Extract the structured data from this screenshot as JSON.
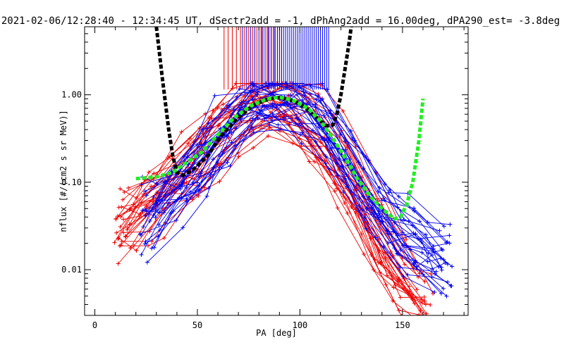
{
  "chart_data": {
    "type": "scatter",
    "title": "2021-02-06/12:28:40 - 12:34:45 UT, dSectr2add = -1, dPhAng2add = 16.00deg, dPA290_est=  -3.8deg",
    "xlabel": "PA [deg]",
    "ylabel": "nflux [#/(cm2 s sr MeV)]",
    "xlim": [
      -5,
      182
    ],
    "ylim": [
      0.003,
      6
    ],
    "y_scale": "log",
    "x_ticks": [
      0,
      50,
      100,
      150
    ],
    "x_tick_labels": [
      "0",
      "50",
      "100",
      "150"
    ],
    "y_ticks": [
      0.01,
      0.1,
      1.0
    ],
    "y_tick_labels": [
      "0.01",
      "0.10",
      "1.00"
    ],
    "grid": false,
    "colors": {
      "red_series": "#ee0000",
      "blue_series": "#0000ee",
      "black_fit": "#000000",
      "green_fit": "#22ee22"
    },
    "series": [
      {
        "color": "red",
        "style": "lines+plus-markers",
        "peak_pa": 86,
        "profile": [
          [
            8,
            0.03
          ],
          [
            15,
            0.038
          ],
          [
            20,
            0.045
          ],
          [
            30,
            0.07
          ],
          [
            40,
            0.12
          ],
          [
            50,
            0.2
          ],
          [
            60,
            0.38
          ],
          [
            70,
            0.62
          ],
          [
            80,
            0.86
          ],
          [
            87,
            0.95
          ],
          [
            95,
            0.82
          ],
          [
            105,
            0.5
          ],
          [
            115,
            0.25
          ],
          [
            125,
            0.1
          ],
          [
            135,
            0.035
          ],
          [
            145,
            0.012
          ],
          [
            155,
            0.006
          ],
          [
            165,
            0.004
          ]
        ]
      },
      {
        "color": "blue",
        "style": "lines+plus-markers",
        "peak_pa": 92,
        "profile": [
          [
            22,
            0.035
          ],
          [
            30,
            0.05
          ],
          [
            40,
            0.09
          ],
          [
            50,
            0.16
          ],
          [
            60,
            0.32
          ],
          [
            70,
            0.58
          ],
          [
            80,
            0.82
          ],
          [
            90,
            0.97
          ],
          [
            100,
            0.84
          ],
          [
            110,
            0.55
          ],
          [
            120,
            0.25
          ],
          [
            130,
            0.09
          ],
          [
            140,
            0.04
          ],
          [
            150,
            0.025
          ],
          [
            160,
            0.018
          ],
          [
            170,
            0.012
          ],
          [
            175,
            0.01
          ]
        ]
      },
      {
        "color": "black",
        "style": "thick dashed fit",
        "points": [
          [
            30,
            6.0
          ],
          [
            33,
            1.5
          ],
          [
            36,
            0.4
          ],
          [
            38,
            0.2
          ],
          [
            40,
            0.13
          ],
          [
            43,
            0.12
          ],
          [
            48,
            0.14
          ],
          [
            55,
            0.2
          ],
          [
            62,
            0.35
          ],
          [
            70,
            0.55
          ],
          [
            78,
            0.78
          ],
          [
            85,
            0.9
          ],
          [
            90,
            0.93
          ],
          [
            97,
            0.85
          ],
          [
            103,
            0.7
          ],
          [
            108,
            0.55
          ],
          [
            113,
            0.44
          ],
          [
            116,
            0.45
          ],
          [
            118,
            0.6
          ],
          [
            120,
            1.0
          ],
          [
            122,
            2.0
          ],
          [
            124,
            4.0
          ],
          [
            125,
            6.0
          ]
        ]
      },
      {
        "color": "green",
        "style": "thick dashed fit",
        "points": [
          [
            20,
            0.11
          ],
          [
            30,
            0.115
          ],
          [
            38,
            0.13
          ],
          [
            45,
            0.17
          ],
          [
            52,
            0.22
          ],
          [
            60,
            0.35
          ],
          [
            68,
            0.55
          ],
          [
            76,
            0.75
          ],
          [
            84,
            0.9
          ],
          [
            90,
            0.94
          ],
          [
            97,
            0.86
          ],
          [
            104,
            0.7
          ],
          [
            110,
            0.5
          ],
          [
            116,
            0.32
          ],
          [
            122,
            0.19
          ],
          [
            128,
            0.11
          ],
          [
            134,
            0.07
          ],
          [
            140,
            0.05
          ],
          [
            146,
            0.038
          ],
          [
            149,
            0.04
          ],
          [
            152,
            0.055
          ],
          [
            155,
            0.1
          ],
          [
            158,
            0.3
          ],
          [
            160,
            0.9
          ]
        ]
      }
    ],
    "vertical_markers": {
      "top_value": 6,
      "bottom_value": 1.15,
      "red_pa": [
        63,
        65,
        67,
        69,
        71,
        73,
        75,
        77,
        79,
        81,
        82,
        83,
        84,
        85,
        86,
        87,
        88,
        89,
        90,
        91
      ],
      "blue_pa": [
        72,
        74,
        76,
        78,
        80,
        81.5,
        83,
        84.5,
        86,
        87.5,
        89,
        90,
        91,
        92,
        93,
        94,
        95,
        96,
        97,
        98,
        99,
        100,
        101,
        102,
        103,
        104,
        105,
        106,
        107,
        108,
        109,
        110,
        111,
        112,
        113,
        114
      ]
    }
  }
}
